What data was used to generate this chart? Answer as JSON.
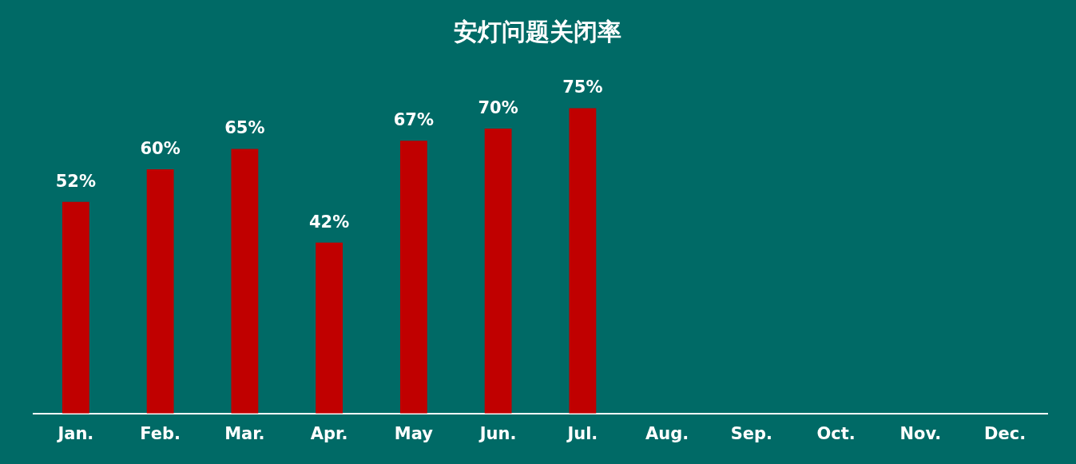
{
  "chart_data": {
    "type": "bar",
    "title": "安灯问题关闭率",
    "categories": [
      "Jan.",
      "Feb.",
      "Mar.",
      "Apr.",
      "May",
      "Jun.",
      "Jul.",
      "Aug.",
      "Sep.",
      "Oct.",
      "Nov.",
      "Dec."
    ],
    "values": [
      52,
      60,
      65,
      42,
      67,
      70,
      75,
      null,
      null,
      null,
      null,
      null
    ],
    "value_labels": [
      "52%",
      "60%",
      "65%",
      "42%",
      "67%",
      "70%",
      "75%",
      null,
      null,
      null,
      null,
      null
    ],
    "color": "#c00000",
    "relative": false,
    "grid": false,
    "legend": false
  }
}
